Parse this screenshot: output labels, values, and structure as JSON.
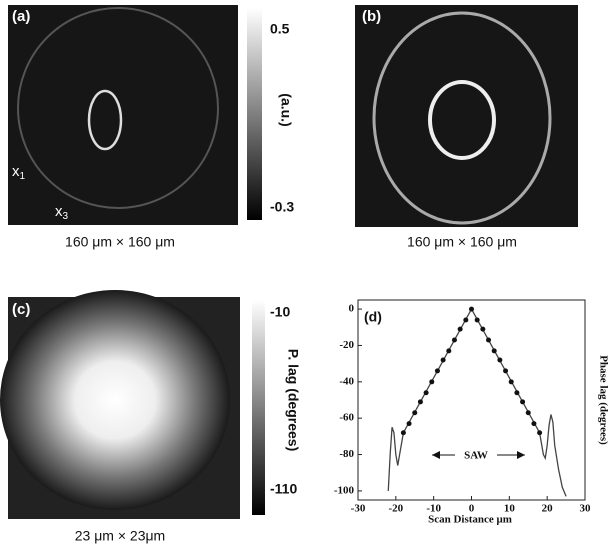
{
  "panels": [
    {
      "label": "(a)",
      "axes": [
        {
          "base": "x",
          "sub": "1"
        },
        {
          "base": "x",
          "sub": "3"
        }
      ],
      "colorbar": {
        "max": "0.5",
        "min": "-0.3",
        "unit": "(a.u.)"
      },
      "caption": "160 μm × 160 μm"
    },
    {
      "label": "(b)",
      "caption": "160 μm × 160 μm"
    },
    {
      "label": "(c)",
      "colorbar": {
        "max": "-10",
        "min": "-110",
        "unit": "P. lag (degrees)"
      },
      "caption": "23 μm × 23μm"
    }
  ],
  "chart_data": {
    "type": "line",
    "label": "(d)",
    "x_label": "Scan Distance μm",
    "y_label": "Phase lag (degrees)",
    "annotation": "SAW",
    "xlim": [
      -30,
      30
    ],
    "ylim": [
      -105,
      5
    ],
    "xticks": [
      -30,
      -20,
      -10,
      0,
      10,
      20,
      30
    ],
    "yticks": [
      0,
      -20,
      -40,
      -60,
      -80,
      -100
    ],
    "series": [
      {
        "color": "#444444",
        "markers": false,
        "x": [
          -22,
          -21.5,
          -21,
          -20.5,
          -20,
          -19.5,
          -19,
          -18,
          -9,
          0,
          9,
          18,
          19,
          19.5,
          20,
          20.5,
          21,
          21.5,
          22,
          23,
          24,
          25
        ],
        "values": [
          -100,
          -80,
          -65,
          -68,
          -80,
          -86,
          -80,
          -68,
          -34,
          0,
          -34,
          -68,
          -80,
          -82,
          -75,
          -64,
          -58,
          -62,
          -75,
          -88,
          -98,
          -103
        ]
      },
      {
        "color": "#111111",
        "markers": true,
        "x": [
          -18,
          -16.5,
          -15,
          -13.5,
          -12,
          -10.5,
          -9,
          -7.5,
          -6,
          -4.5,
          -3,
          -1.5,
          0,
          1.5,
          3,
          4.5,
          6,
          7.5,
          9,
          10.5,
          12,
          13.5,
          15,
          16.5,
          18
        ],
        "values": [
          -68,
          -63,
          -57,
          -51,
          -46,
          -40,
          -34,
          -28,
          -23,
          -17,
          -11,
          -6,
          0,
          -6,
          -11,
          -17,
          -23,
          -28,
          -34,
          -40,
          -46,
          -51,
          -57,
          -63,
          -68
        ]
      }
    ]
  }
}
